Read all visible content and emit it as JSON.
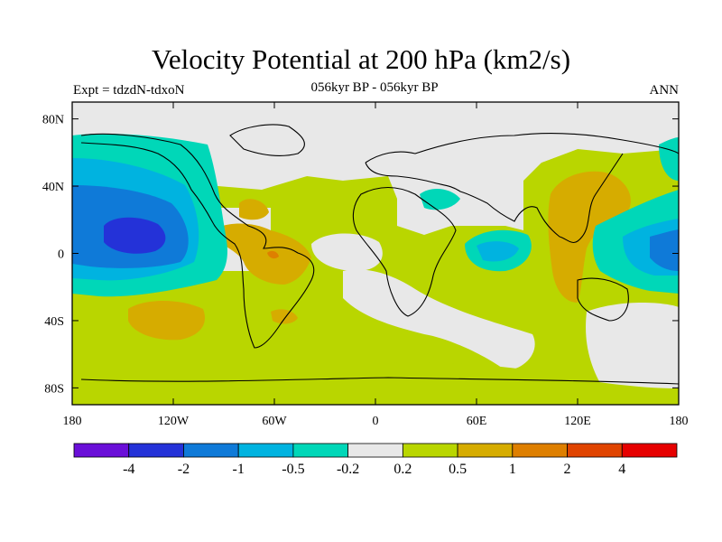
{
  "title": "Velocity Potential at 200 hPa (km2/s)",
  "subtitle": "056kyr BP - 056kyr BP",
  "expt_label": "Expt = tdzdN-tdxoN",
  "season": "ANN",
  "map": {
    "projection": "cylindrical equidistant",
    "lon_range": [
      -180,
      180
    ],
    "lat_range": [
      -90,
      90
    ],
    "lat_tick_labels": [
      "80N",
      "40N",
      "0",
      "40S",
      "80S"
    ],
    "lon_tick_labels": [
      "180",
      "120W",
      "60W",
      "0",
      "60E",
      "120E",
      "180"
    ]
  },
  "colorbar": {
    "labels": [
      "-4",
      "-2",
      "-1",
      "-0.5",
      "-0.2",
      "0.2",
      "0.5",
      "1",
      "2",
      "4"
    ],
    "colors": [
      "#6a0fd8",
      "#2432d8",
      "#0f7ad8",
      "#00b3e0",
      "#00d7b8",
      "#e8e8e8",
      "#b9d600",
      "#d6ac00",
      "#de7f00",
      "#e04400",
      "#e60000"
    ]
  }
}
